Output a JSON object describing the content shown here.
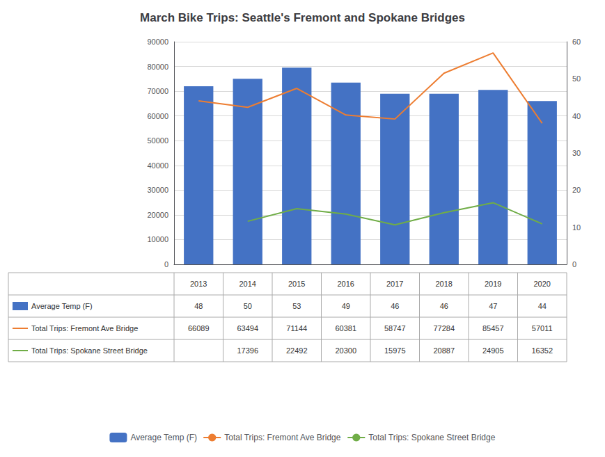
{
  "chart_data": {
    "type": "bar",
    "title": "March Bike Trips: Seattle's Fremont and Spokane Bridges",
    "categories": [
      "2013",
      "2014",
      "2015",
      "2016",
      "2017",
      "2018",
      "2019",
      "2020"
    ],
    "series": [
      {
        "name": "Average Temp (F)",
        "type": "bar",
        "axis": "y2",
        "color": "#4472C4",
        "values": [
          48,
          50,
          53,
          49,
          46,
          46,
          47,
          44
        ]
      },
      {
        "name": "Total Trips: Fremont Ave Bridge",
        "type": "line",
        "color": "#ED7D31",
        "values": [
          66089,
          63494,
          71144,
          60381,
          58747,
          77284,
          85457,
          57011
        ]
      },
      {
        "name": "Total Trips: Spokane Street Bridge",
        "type": "line",
        "color": "#70AD47",
        "values": [
          null,
          17396,
          22492,
          20300,
          15975,
          20887,
          24905,
          16352
        ]
      }
    ],
    "ylim": [
      0,
      90000
    ],
    "yticks": [
      0,
      10000,
      20000,
      30000,
      40000,
      50000,
      60000,
      70000,
      80000,
      90000
    ],
    "y2lim": [
      0,
      60
    ],
    "y2ticks": [
      0,
      10,
      20,
      30,
      40,
      50,
      60
    ],
    "grid": true,
    "legend": "bottom"
  }
}
